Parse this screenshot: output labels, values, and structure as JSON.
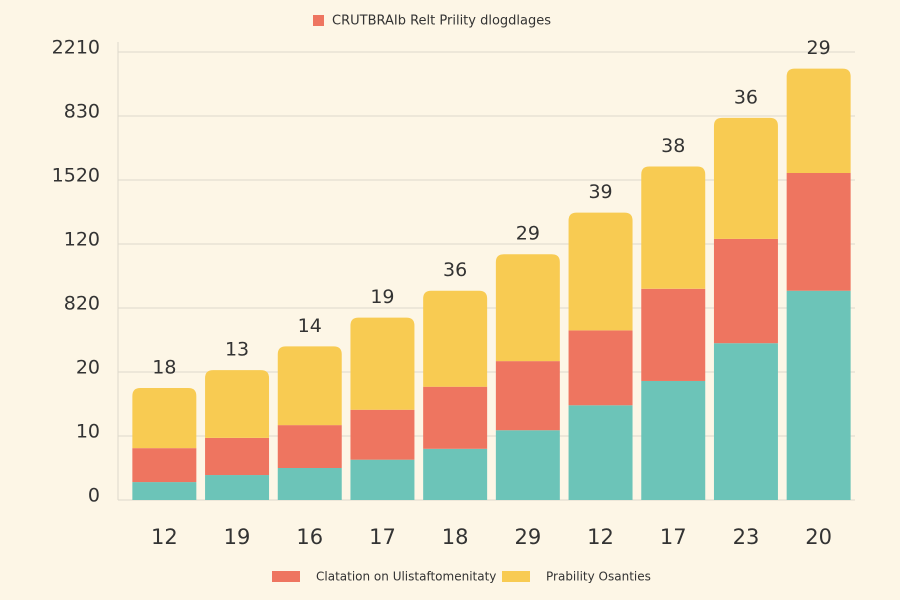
{
  "chart_data": {
    "type": "stacked_bar",
    "title": "CRUTBRAIb Relt Prility dlogdlages",
    "title_color": "#ee7560",
    "categories": [
      "12",
      "19",
      "16",
      "17",
      "18",
      "29",
      "12",
      "17",
      "23",
      "20"
    ],
    "annotations": [
      "18",
      "13",
      "14",
      "19",
      "36",
      "29",
      "39",
      "38",
      "36",
      "29"
    ],
    "series": [
      {
        "color": "#6cc4b8",
        "values": [
          0.28,
          0.39,
          0.5,
          0.63,
          0.8,
          1.09,
          1.48,
          1.86,
          2.45,
          3.27
        ]
      },
      {
        "name": "Clatation on Ulistaftomenitaty",
        "color": "#ee7560",
        "values": [
          0.53,
          0.58,
          0.67,
          0.78,
          0.97,
          1.08,
          1.17,
          1.44,
          1.63,
          1.84
        ]
      },
      {
        "name": "Prability Osanties",
        "color": "#f8cb52",
        "values": [
          0.94,
          1.06,
          1.23,
          1.44,
          1.5,
          1.67,
          1.84,
          1.91,
          1.89,
          1.63
        ]
      }
    ],
    "ylim": [
      0,
      7
    ],
    "yticks": [
      {
        "value": 0,
        "label": "0"
      },
      {
        "value": 1,
        "label": "10"
      },
      {
        "value": 2,
        "label": "20"
      },
      {
        "value": 3,
        "label": "820"
      },
      {
        "value": 4,
        "label": "120"
      },
      {
        "value": 5,
        "label": "1520"
      },
      {
        "value": 6,
        "label": "830"
      },
      {
        "value": 7,
        "label": "2210"
      }
    ],
    "grid": true
  }
}
